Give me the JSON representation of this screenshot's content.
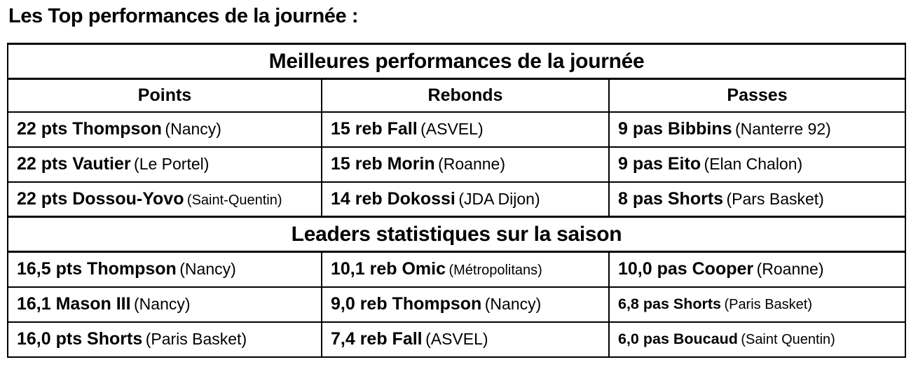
{
  "page_title": "Les Top performances de la journée :",
  "table": {
    "column_headers": [
      "Points",
      "Rebonds",
      "Passes"
    ],
    "sections": [
      {
        "title": "Meilleures performances de la journée",
        "rows": [
          {
            "cells": [
              {
                "value": "22 pts Thompson",
                "team": "(Nancy)"
              },
              {
                "value": "15 reb Fall",
                "team": "(ASVEL)"
              },
              {
                "value": "9 pas Bibbins",
                "team": "(Nanterre 92)"
              }
            ]
          },
          {
            "cells": [
              {
                "value": "22 pts Vautier",
                "team": "(Le Portel)"
              },
              {
                "value": "15 reb Morin",
                "team": "(Roanne)"
              },
              {
                "value": "9 pas Eito",
                "team": "(Elan Chalon)"
              }
            ]
          },
          {
            "cells": [
              {
                "value": "22 pts Dossou-Yovo",
                "team": "(Saint-Quentin)"
              },
              {
                "value": "14 reb Dokossi",
                "team": "(JDA Dijon)"
              },
              {
                "value": "8 pas Shorts",
                "team": "(Pars Basket)"
              }
            ]
          }
        ]
      },
      {
        "title": "Leaders statistiques sur la saison",
        "rows": [
          {
            "cells": [
              {
                "value": "16,5 pts Thompson",
                "team": "(Nancy)"
              },
              {
                "value": "10,1 reb Omic",
                "team": "(Métropolitans)"
              },
              {
                "value": "10,0 pas Cooper",
                "team": "(Roanne)"
              }
            ]
          },
          {
            "cells": [
              {
                "value": "16,1 Mason III",
                "team": "(Nancy)"
              },
              {
                "value": "9,0 reb Thompson",
                "team": "(Nancy)"
              },
              {
                "value": "6,8 pas Shorts",
                "team": "(Paris Basket)"
              }
            ]
          },
          {
            "cells": [
              {
                "value": "16,0 pts Shorts",
                "team": "(Paris Basket)"
              },
              {
                "value": "7,4 reb Fall",
                "team": "(ASVEL)"
              },
              {
                "value": "6,0 pas Boucaud",
                "team": "(Saint Quentin)"
              }
            ]
          }
        ]
      }
    ]
  }
}
